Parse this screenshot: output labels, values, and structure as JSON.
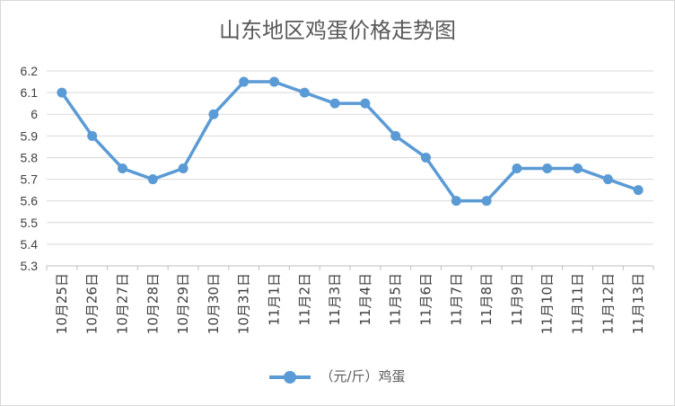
{
  "chart_data": {
    "type": "line",
    "title": "山东地区鸡蛋价格走势图",
    "categories": [
      "10月25日",
      "10月26日",
      "10月27日",
      "10月28日",
      "10月29日",
      "10月30日",
      "10月31日",
      "11月1日",
      "11月2日",
      "11月3日",
      "11月4日",
      "11月5日",
      "11月6日",
      "11月7日",
      "11月8日",
      "11月9日",
      "11月10日",
      "11月11日",
      "11月12日",
      "11月13日"
    ],
    "series": [
      {
        "name": "（元/斤）鸡蛋",
        "values": [
          6.1,
          5.9,
          5.75,
          5.7,
          5.75,
          6.0,
          6.15,
          6.15,
          6.1,
          6.05,
          6.05,
          5.9,
          5.8,
          5.6,
          5.6,
          5.75,
          5.75,
          5.75,
          5.7,
          5.65
        ]
      }
    ],
    "ylim": [
      5.3,
      6.2
    ],
    "yticks": [
      "5.3",
      "5.4",
      "5.5",
      "5.6",
      "5.7",
      "5.8",
      "5.9",
      "6",
      "6.1",
      "6.2"
    ],
    "grid": true,
    "legend_position": "bottom",
    "color": "#5b9bd5"
  }
}
